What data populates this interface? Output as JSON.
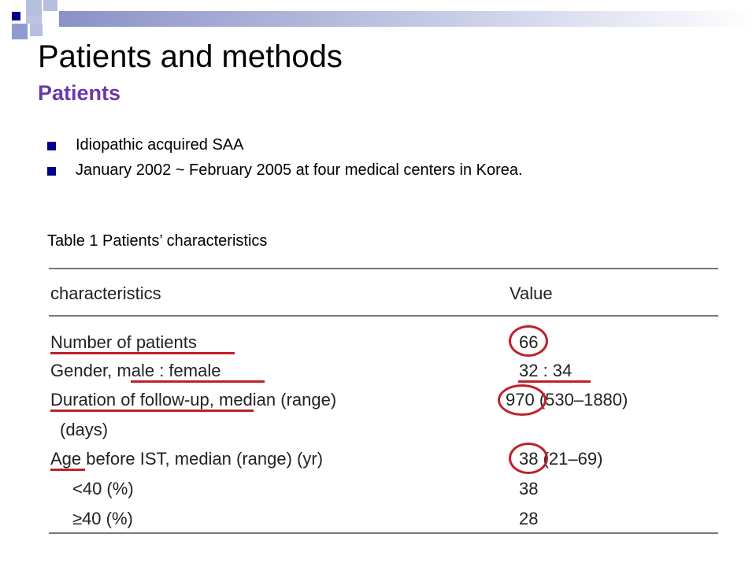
{
  "slide": {
    "title": "Patients and methods",
    "subtitle": "Patients",
    "bullets": [
      "Idiopathic acquired SAA",
      "January 2002 ~ February 2005 at four medical centers in Korea."
    ],
    "table_caption": "Table 1 Patients’ characteristics"
  },
  "table": {
    "headers": {
      "characteristics": "characteristics",
      "value": "Value"
    },
    "rows": [
      {
        "label": "Number of patients",
        "value": "66"
      },
      {
        "label": "Gender, male : female",
        "value": "32 : 34"
      },
      {
        "label": "Duration of follow-up, median (range)",
        "label2": "(days)",
        "value": "970 (530–1880)"
      },
      {
        "label": "Age before IST, median (range) (yr)",
        "value": "38 (21–69)"
      },
      {
        "label": "<40 (%)",
        "value": "38"
      },
      {
        "label": "≥40 (%)",
        "value": "28"
      }
    ]
  },
  "colors": {
    "accent": "#6a3aa8",
    "bullet": "#00008a",
    "annotation": "#c0202a"
  }
}
